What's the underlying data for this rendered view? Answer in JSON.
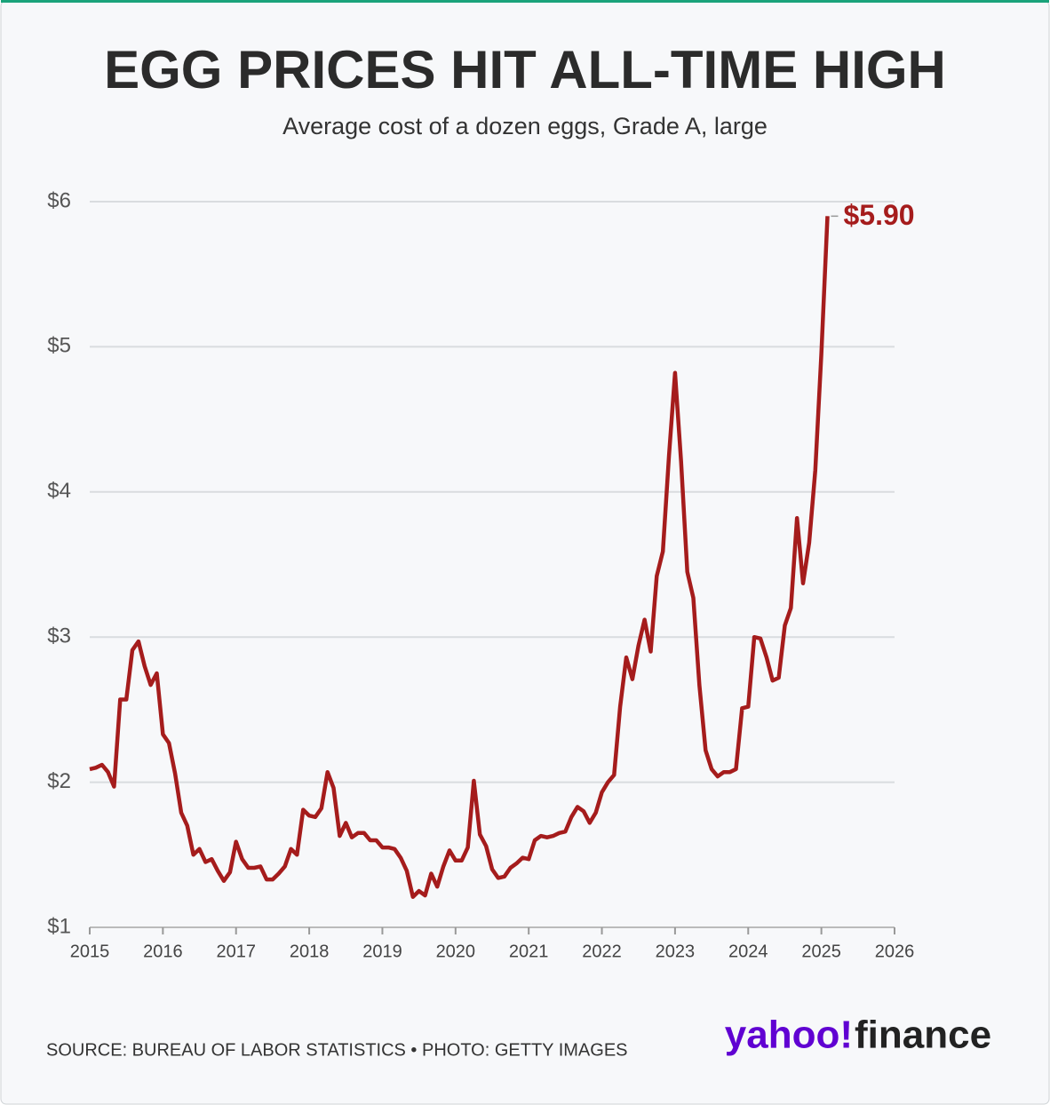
{
  "chart_data": {
    "type": "line",
    "title": "EGG PRICES HIT ALL-TIME HIGH",
    "subtitle": "Average cost of a dozen eggs, Grade A, large",
    "source": "SOURCE: BUREAU OF LABOR STATISTICS • PHOTO: GETTY IMAGES",
    "logo": {
      "brand": "yahoo!",
      "product": "finance"
    },
    "annotations": [
      {
        "text": "$5.90"
      }
    ],
    "x": [
      2015,
      2015.083,
      2015.167,
      2015.25,
      2015.333,
      2015.417,
      2015.5,
      2015.583,
      2015.667,
      2015.75,
      2015.833,
      2015.917,
      2016,
      2016.083,
      2016.167,
      2016.25,
      2016.333,
      2016.417,
      2016.5,
      2016.583,
      2016.667,
      2016.75,
      2016.833,
      2016.917,
      2017,
      2017.083,
      2017.167,
      2017.25,
      2017.333,
      2017.417,
      2017.5,
      2017.583,
      2017.667,
      2017.75,
      2017.833,
      2017.917,
      2018,
      2018.083,
      2018.167,
      2018.25,
      2018.333,
      2018.417,
      2018.5,
      2018.583,
      2018.667,
      2018.75,
      2018.833,
      2018.917,
      2019,
      2019.083,
      2019.167,
      2019.25,
      2019.333,
      2019.417,
      2019.5,
      2019.583,
      2019.667,
      2019.75,
      2019.833,
      2019.917,
      2020,
      2020.083,
      2020.167,
      2020.25,
      2020.333,
      2020.417,
      2020.5,
      2020.583,
      2020.667,
      2020.75,
      2020.833,
      2020.917,
      2021,
      2021.083,
      2021.167,
      2021.25,
      2021.333,
      2021.417,
      2021.5,
      2021.583,
      2021.667,
      2021.75,
      2021.833,
      2021.917,
      2022,
      2022.083,
      2022.167,
      2022.25,
      2022.333,
      2022.417,
      2022.5,
      2022.583,
      2022.667,
      2022.75,
      2022.833,
      2022.917,
      2023,
      2023.083,
      2023.167,
      2023.25,
      2023.333,
      2023.417,
      2023.5,
      2023.583,
      2023.667,
      2023.75,
      2023.833,
      2023.917,
      2024,
      2024.083,
      2024.167,
      2024.25,
      2024.333,
      2024.417,
      2024.5,
      2024.583,
      2024.667,
      2024.75,
      2024.833,
      2024.917,
      2025,
      2025.083
    ],
    "series": [
      {
        "name": "Average cost",
        "color": "#a51c1c",
        "values": [
          2.09,
          2.1,
          2.12,
          2.07,
          1.97,
          2.57,
          2.57,
          2.91,
          2.97,
          2.8,
          2.67,
          2.75,
          2.33,
          2.27,
          2.06,
          1.79,
          1.7,
          1.5,
          1.54,
          1.45,
          1.47,
          1.39,
          1.32,
          1.38,
          1.59,
          1.47,
          1.41,
          1.41,
          1.42,
          1.33,
          1.33,
          1.37,
          1.42,
          1.54,
          1.5,
          1.81,
          1.77,
          1.76,
          1.82,
          2.07,
          1.96,
          1.63,
          1.72,
          1.62,
          1.65,
          1.65,
          1.6,
          1.6,
          1.55,
          1.55,
          1.54,
          1.48,
          1.39,
          1.21,
          1.25,
          1.22,
          1.37,
          1.28,
          1.42,
          1.53,
          1.46,
          1.46,
          1.55,
          2.01,
          1.64,
          1.56,
          1.4,
          1.34,
          1.35,
          1.41,
          1.44,
          1.48,
          1.47,
          1.6,
          1.63,
          1.62,
          1.63,
          1.65,
          1.66,
          1.76,
          1.83,
          1.8,
          1.72,
          1.79,
          1.93,
          2.0,
          2.05,
          2.52,
          2.86,
          2.71,
          2.94,
          3.12,
          2.9,
          3.42,
          3.59,
          4.25,
          4.82,
          4.21,
          3.45,
          3.27,
          2.67,
          2.22,
          2.09,
          2.04,
          2.07,
          2.07,
          2.09,
          2.51,
          2.52,
          3.0,
          2.99,
          2.86,
          2.7,
          2.72,
          3.08,
          3.2,
          3.82,
          3.37,
          3.65,
          4.15,
          4.95,
          5.9
        ]
      }
    ],
    "xlim": [
      2015,
      2026
    ],
    "xticks": [
      2015,
      2016,
      2017,
      2018,
      2019,
      2020,
      2021,
      2022,
      2023,
      2024,
      2025,
      2026
    ],
    "ylim": [
      1,
      6
    ],
    "yticks": [
      {
        "value": 1,
        "label": "$1"
      },
      {
        "value": 2,
        "label": "$2"
      },
      {
        "value": 3,
        "label": "$3"
      },
      {
        "value": 4,
        "label": "$4"
      },
      {
        "value": 5,
        "label": "$5"
      },
      {
        "value": 6,
        "label": "$6"
      }
    ],
    "grid": true
  }
}
